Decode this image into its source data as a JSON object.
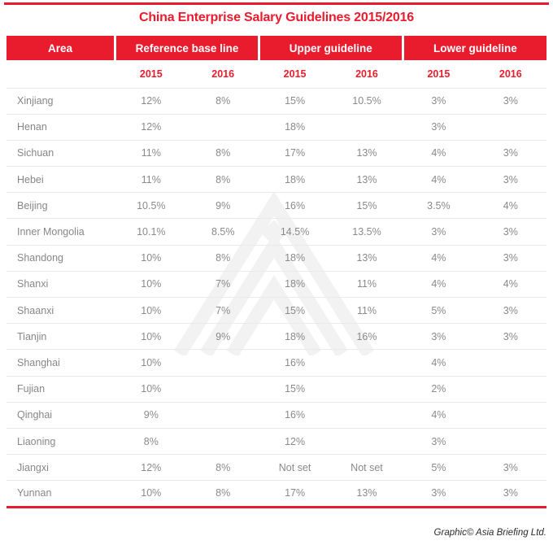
{
  "title": "China Enterprise Salary Guidelines 2015/2016",
  "header": {
    "area": "Area",
    "groups": [
      "Reference base line",
      "Upper guideline",
      "Lower guideline"
    ],
    "years": [
      "2015",
      "2016",
      "2015",
      "2016",
      "2015",
      "2016"
    ]
  },
  "chart_data": {
    "type": "table",
    "title": "China Enterprise Salary Guidelines 2015/2016",
    "column_groups": [
      "Reference base line",
      "Upper guideline",
      "Lower guideline"
    ],
    "columns": [
      "Area",
      "Reference base line 2015",
      "Reference base line 2016",
      "Upper guideline 2015",
      "Upper guideline 2016",
      "Lower guideline 2015",
      "Lower guideline 2016"
    ],
    "rows": [
      {
        "area": "Xinjiang",
        "values": [
          "12%",
          "8%",
          "15%",
          "10.5%",
          "3%",
          "3%"
        ]
      },
      {
        "area": "Henan",
        "values": [
          "12%",
          "",
          "18%",
          "",
          "3%",
          ""
        ]
      },
      {
        "area": "Sichuan",
        "values": [
          "11%",
          "8%",
          "17%",
          "13%",
          "4%",
          "3%"
        ]
      },
      {
        "area": "Hebei",
        "values": [
          "11%",
          "8%",
          "18%",
          "13%",
          "4%",
          "3%"
        ]
      },
      {
        "area": "Beijing",
        "values": [
          "10.5%",
          "9%",
          "16%",
          "15%",
          "3.5%",
          "4%"
        ]
      },
      {
        "area": "Inner Mongolia",
        "values": [
          "10.1%",
          "8.5%",
          "14.5%",
          "13.5%",
          "3%",
          "3%"
        ]
      },
      {
        "area": "Shandong",
        "values": [
          "10%",
          "8%",
          "18%",
          "13%",
          "4%",
          "3%"
        ]
      },
      {
        "area": "Shanxi",
        "values": [
          "10%",
          "7%",
          "18%",
          "11%",
          "4%",
          "4%"
        ]
      },
      {
        "area": "Shaanxi",
        "values": [
          "10%",
          "7%",
          "15%",
          "11%",
          "5%",
          "3%"
        ]
      },
      {
        "area": "Tianjin",
        "values": [
          "10%",
          "9%",
          "18%",
          "16%",
          "3%",
          "3%"
        ]
      },
      {
        "area": "Shanghai",
        "values": [
          "10%",
          "",
          "16%",
          "",
          "4%",
          ""
        ]
      },
      {
        "area": "Fujian",
        "values": [
          "10%",
          "",
          "15%",
          "",
          "2%",
          ""
        ]
      },
      {
        "area": "Qinghai",
        "values": [
          "9%",
          "",
          "16%",
          "",
          "4%",
          ""
        ]
      },
      {
        "area": "Liaoning",
        "values": [
          "8%",
          "",
          "12%",
          "",
          "3%",
          ""
        ]
      },
      {
        "area": "Jiangxi",
        "values": [
          "12%",
          "8%",
          "Not set",
          "Not set",
          "5%",
          "3%"
        ]
      },
      {
        "area": "Yunnan",
        "values": [
          "10%",
          "8%",
          "17%",
          "13%",
          "3%",
          "3%"
        ]
      }
    ]
  },
  "watermark": {
    "icon": "asia-briefing-triangle-logo"
  },
  "footer": {
    "credit": "Graphic© Asia Briefing Ltd."
  },
  "colors": {
    "brand_red": "#e81c2c",
    "row_text": "#8a8a8a",
    "divider": "#eaeaea",
    "watermark": "#f2f2f2"
  }
}
